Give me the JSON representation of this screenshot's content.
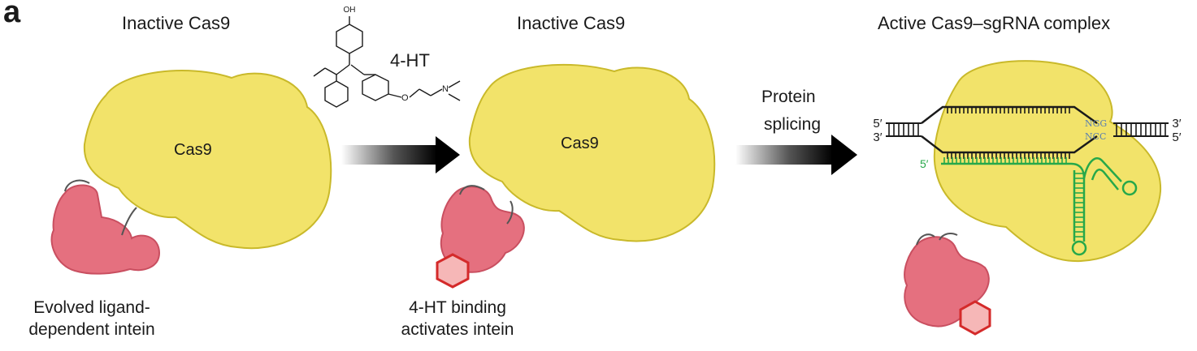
{
  "panel_label": "a",
  "titles": {
    "left": "Inactive Cas9",
    "middle": "Inactive Cas9",
    "right": "Active Cas9–sgRNA complex"
  },
  "ligand": {
    "name": "4-HT",
    "oh": "OH",
    "n": "N",
    "o": "O"
  },
  "protein_label": "Cas9",
  "step_label": {
    "line1": "Protein",
    "line2": "splicing"
  },
  "captions": {
    "left": {
      "line1": "Evolved ligand-",
      "line2": "dependent intein"
    },
    "middle": {
      "line1": "4-HT binding",
      "line2": "activates intein"
    }
  },
  "dna": {
    "left_top": "5′",
    "left_bottom": "3′",
    "right_top": "3′",
    "right_bottom": "5′",
    "pam_top": "NGG",
    "pam_bottom": "NCC",
    "guide_end": "5′"
  },
  "colors": {
    "cas9": "#f2e36a",
    "cas9_stroke": "#c9b92a",
    "intein": "#e5707f",
    "intein_stroke": "#c94f60",
    "ligand_hex": "#d42a2a",
    "sgrna": "#27a84a",
    "pam": "#5a7fb0"
  }
}
